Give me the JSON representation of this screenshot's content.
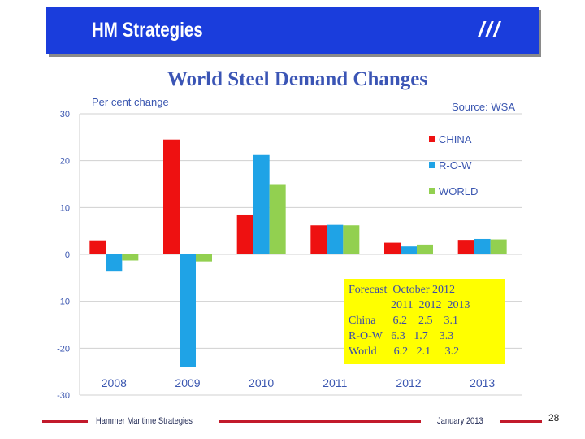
{
  "banner": {
    "title": "HM Strategies",
    "mark": "///"
  },
  "chart_data": {
    "type": "bar",
    "title": "World Steel Demand Changes",
    "ylabel": "Per cent change",
    "source": "Source: WSA",
    "categories": [
      "2008",
      "2009",
      "2010",
      "2011",
      "2012",
      "2013"
    ],
    "series": [
      {
        "name": "CHINA",
        "color": "#ee1111",
        "values": [
          3.0,
          24.5,
          8.5,
          6.2,
          2.5,
          3.1
        ]
      },
      {
        "name": "R-O-W",
        "color": "#1fa3e6",
        "values": [
          -3.5,
          -24.0,
          21.2,
          6.3,
          1.7,
          3.3
        ]
      },
      {
        "name": "WORLD",
        "color": "#92d050",
        "values": [
          -1.3,
          -1.5,
          15.0,
          6.2,
          2.1,
          3.2
        ]
      }
    ],
    "ylim": [
      -30,
      30
    ],
    "yticks": [
      "30",
      "20",
      "10",
      "0",
      "-10",
      "-20",
      "-30"
    ],
    "ytick_values": [
      30,
      20,
      10,
      0,
      -10,
      -20,
      -30
    ]
  },
  "forecast": {
    "heading": "Forecast  October 2012",
    "columns": "2011  2012  2013",
    "rows": [
      "China      6.2    2.5    3.1",
      "R-O-W   6.3   1.7    3.3",
      "World      6.2   2.1     3.2"
    ]
  },
  "footer": {
    "left": "Hammer Maritime Strategies",
    "right": "January 2013",
    "page": "28"
  }
}
